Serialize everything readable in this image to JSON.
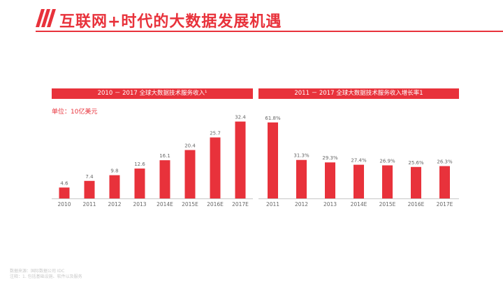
{
  "page": {
    "title": "互联网+时代的大数据发展机遇",
    "accent_color": "#e8323b"
  },
  "left_panel": {
    "title": "2010 － 2017 全球大数据技术服务收入¹",
    "unit_label": "单位：10亿美元"
  },
  "right_panel": {
    "title": "2011 － 2017 全球大数据技术服务收入增长率1"
  },
  "footer": {
    "line1": "数据来源：国际数据公司 IDC",
    "line2": "注释：1. 包括基础设施、软件以及服务"
  },
  "chart_data": [
    {
      "type": "bar",
      "title": "2010 － 2017 全球大数据技术服务收入¹",
      "categories": [
        "2010",
        "2011",
        "2012",
        "2013",
        "2014E",
        "2015E",
        "2016E",
        "2017E"
      ],
      "values": [
        4.6,
        7.4,
        9.8,
        12.6,
        16.1,
        20.4,
        25.7,
        32.4
      ],
      "data_labels": [
        "4.6",
        "7.4",
        "9.8",
        "12.6",
        "16.1",
        "20.4",
        "25.7",
        "32.4"
      ],
      "ylim": [
        0,
        35.5
      ],
      "color": "#e8323b",
      "grid": false
    },
    {
      "type": "bar",
      "title": "2011 － 2017 全球大数据技术服务收入增长率1",
      "categories": [
        "2011",
        "2012",
        "2013",
        "2014E",
        "2015E",
        "2016E",
        "2017E"
      ],
      "values": [
        61.8,
        31.3,
        29.3,
        27.4,
        26.9,
        25.6,
        26.3
      ],
      "data_labels": [
        "61.8%",
        "31.3%",
        "29.3%",
        "27.4%",
        "26.9%",
        "25.6%",
        "26.3%"
      ],
      "ylim": [
        0,
        68.5
      ],
      "color": "#e8323b",
      "grid": false
    }
  ]
}
